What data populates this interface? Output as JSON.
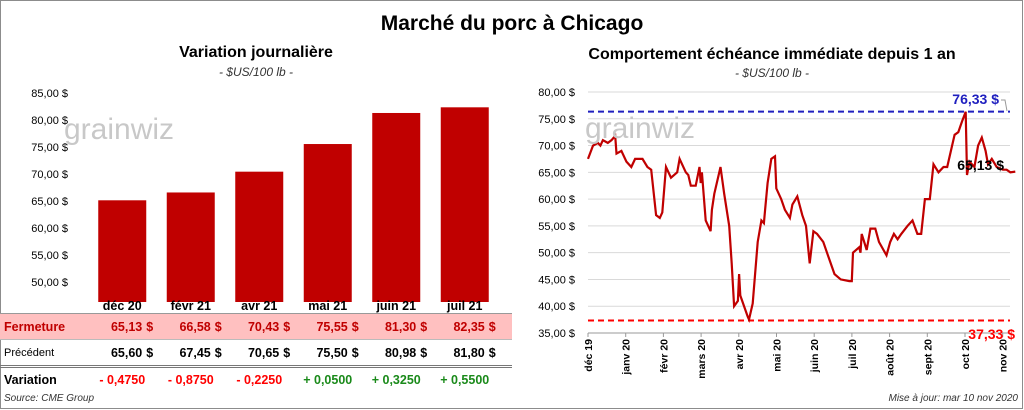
{
  "title": "Marché du porc à Chicago",
  "watermark": "grainwiz",
  "left": {
    "subtitle": "Variation journalière",
    "unit": "- $US/100 lb -",
    "rows": {
      "close_label": "Fermeture",
      "prev_label": "Précédent",
      "var_label": "Variation"
    },
    "contracts": [
      {
        "month": "déc 20",
        "close": "65,13",
        "prev": "65,60",
        "var": "- 0,4750"
      },
      {
        "month": "févr 21",
        "close": "66,58",
        "prev": "67,45",
        "var": "- 0,8750"
      },
      {
        "month": "avr 21",
        "close": "70,43",
        "prev": "70,65",
        "var": "- 0,2250"
      },
      {
        "month": "mai 21",
        "close": "75,55",
        "prev": "75,50",
        "var": "+ 0,0500"
      },
      {
        "month": "juin 21",
        "close": "81,30",
        "prev": "80,98",
        "var": "+ 0,3250"
      },
      {
        "month": "juil 21",
        "close": "82,35",
        "prev": "81,80",
        "var": "+ 0,5500"
      }
    ],
    "currency": "$"
  },
  "footer": {
    "source": "Source: CME Group",
    "updated": "Mise à jour: mar 10 nov 2020"
  },
  "colors": {
    "bar": "#c00000",
    "line": "#c00000",
    "max": "#1f1fbf",
    "min": "#ff0000",
    "neg": "#ff0000",
    "pos": "#1a8a1a",
    "close_row_bg": "#ffc0c0"
  },
  "chart_data": [
    {
      "type": "bar",
      "title": "Variation journalière",
      "subtitle": "- $US/100 lb -",
      "categories": [
        "déc 20",
        "févr 21",
        "avr 21",
        "mai 21",
        "juin 21",
        "juil 21"
      ],
      "values": [
        65.13,
        66.58,
        70.43,
        75.55,
        81.3,
        82.35
      ],
      "ylim": [
        50,
        85
      ],
      "yticks": [
        "50,00 $",
        "55,00 $",
        "60,00 $",
        "65,00 $",
        "70,00 $",
        "75,00 $",
        "80,00 $",
        "85,00 $"
      ],
      "grid": false
    },
    {
      "type": "line",
      "title": "Comportement  échéance immédiate depuis 1 an",
      "subtitle": "- $US/100 lb -",
      "ylim": [
        35,
        80
      ],
      "yticks": [
        "35,00 $",
        "40,00 $",
        "45,00 $",
        "50,00 $",
        "55,00 $",
        "60,00 $",
        "65,00 $",
        "70,00 $",
        "75,00 $",
        "80,00 $"
      ],
      "xticks": [
        "déc 19",
        "janv 20",
        "févr 20",
        "mars 20",
        "avr 20",
        "mai 20",
        "juin 20",
        "juil 20",
        "août 20",
        "sept 20",
        "oct 20",
        "nov 20"
      ],
      "grid": true,
      "max": {
        "value": 76.33,
        "label": "76,33 $"
      },
      "min": {
        "value": 37.33,
        "label": "37,33 $"
      },
      "last": {
        "value": 65.13,
        "label": "65,13 $"
      },
      "points": [
        [
          "2019-12-01",
          67.5
        ],
        [
          "2019-12-05",
          70.0
        ],
        [
          "2019-12-09",
          70.5
        ],
        [
          "2019-12-11",
          70.0
        ],
        [
          "2019-12-13",
          71.0
        ],
        [
          "2019-12-17",
          70.5
        ],
        [
          "2019-12-20",
          71.0
        ],
        [
          "2019-12-23",
          71.8
        ],
        [
          "2019-12-24",
          68.5
        ],
        [
          "2019-12-28",
          69.0
        ],
        [
          "2020-01-01",
          67.0
        ],
        [
          "2020-01-05",
          66.0
        ],
        [
          "2020-01-08",
          67.5
        ],
        [
          "2020-01-14",
          67.5
        ],
        [
          "2020-01-18",
          66.0
        ],
        [
          "2020-01-21",
          65.5
        ],
        [
          "2020-01-25",
          57.0
        ],
        [
          "2020-01-28",
          56.5
        ],
        [
          "2020-01-30",
          57.5
        ],
        [
          "2020-02-02",
          66.0
        ],
        [
          "2020-02-06",
          64.0
        ],
        [
          "2020-02-11",
          65.0
        ],
        [
          "2020-02-13",
          67.5
        ],
        [
          "2020-02-15",
          66.5
        ],
        [
          "2020-02-18",
          65.0
        ],
        [
          "2020-02-20",
          64.5
        ],
        [
          "2020-02-22",
          62.5
        ],
        [
          "2020-02-26",
          62.5
        ],
        [
          "2020-02-29",
          66.0
        ],
        [
          "2020-03-01",
          63.0
        ],
        [
          "2020-03-02",
          65.0
        ],
        [
          "2020-03-05",
          56.0
        ],
        [
          "2020-03-09",
          54.0
        ],
        [
          "2020-03-10",
          58.0
        ],
        [
          "2020-03-12",
          61.0
        ],
        [
          "2020-03-17",
          66.0
        ],
        [
          "2020-03-20",
          61.0
        ],
        [
          "2020-03-24",
          55.0
        ],
        [
          "2020-03-26",
          48.0
        ],
        [
          "2020-03-28",
          40.0
        ],
        [
          "2020-03-31",
          41.0
        ],
        [
          "2020-04-01",
          46.0
        ],
        [
          "2020-04-02",
          42.0
        ],
        [
          "2020-04-08",
          38.0
        ],
        [
          "2020-04-09",
          37.5
        ],
        [
          "2020-04-12",
          40.5
        ],
        [
          "2020-04-16",
          52.0
        ],
        [
          "2020-04-19",
          56.0
        ],
        [
          "2020-04-21",
          55.5
        ],
        [
          "2020-04-22",
          58.0
        ],
        [
          "2020-04-24",
          63.0
        ],
        [
          "2020-04-27",
          67.5
        ],
        [
          "2020-04-30",
          68.0
        ],
        [
          "2020-05-01",
          62.0
        ],
        [
          "2020-05-05",
          60.0
        ],
        [
          "2020-05-08",
          58.0
        ],
        [
          "2020-05-12",
          56.5
        ],
        [
          "2020-05-14",
          59.0
        ],
        [
          "2020-05-18",
          60.5
        ],
        [
          "2020-05-22",
          57.0
        ],
        [
          "2020-05-25",
          55.0
        ],
        [
          "2020-05-28",
          48.0
        ],
        [
          "2020-05-31",
          54.0
        ],
        [
          "2020-06-03",
          53.5
        ],
        [
          "2020-06-08",
          52.0
        ],
        [
          "2020-06-11",
          50.0
        ],
        [
          "2020-06-17",
          46.0
        ],
        [
          "2020-06-22",
          45.0
        ],
        [
          "2020-06-29",
          44.7
        ],
        [
          "2020-07-01",
          44.7
        ],
        [
          "2020-07-02",
          50.0
        ],
        [
          "2020-07-07",
          51.0
        ],
        [
          "2020-07-08",
          50.0
        ],
        [
          "2020-07-09",
          53.5
        ],
        [
          "2020-07-13",
          50.5
        ],
        [
          "2020-07-16",
          54.5
        ],
        [
          "2020-07-20",
          54.5
        ],
        [
          "2020-07-23",
          52.0
        ],
        [
          "2020-07-29",
          49.5
        ],
        [
          "2020-08-01",
          52.0
        ],
        [
          "2020-08-04",
          53.5
        ],
        [
          "2020-08-07",
          52.5
        ],
        [
          "2020-08-10",
          53.5
        ],
        [
          "2020-08-15",
          55.0
        ],
        [
          "2020-08-19",
          56.0
        ],
        [
          "2020-08-23",
          53.5
        ],
        [
          "2020-08-26",
          53.5
        ],
        [
          "2020-08-29",
          60.0
        ],
        [
          "2020-09-02",
          60.0
        ],
        [
          "2020-09-05",
          66.5
        ],
        [
          "2020-09-09",
          65.0
        ],
        [
          "2020-09-13",
          66.0
        ],
        [
          "2020-09-16",
          66.0
        ],
        [
          "2020-09-20",
          70.0
        ],
        [
          "2020-09-22",
          72.0
        ],
        [
          "2020-09-25",
          72.5
        ],
        [
          "2020-09-28",
          74.5
        ],
        [
          "2020-10-01",
          76.3
        ],
        [
          "2020-10-02",
          64.5
        ],
        [
          "2020-10-04",
          67.0
        ],
        [
          "2020-10-08",
          66.0
        ],
        [
          "2020-10-11",
          70.0
        ],
        [
          "2020-10-14",
          71.5
        ],
        [
          "2020-10-17",
          69.0
        ],
        [
          "2020-10-19",
          66.5
        ],
        [
          "2020-10-22",
          67.5
        ],
        [
          "2020-10-26",
          66.0
        ],
        [
          "2020-10-31",
          65.5
        ],
        [
          "2020-11-03",
          65.5
        ],
        [
          "2020-11-06",
          65.0
        ],
        [
          "2020-11-10",
          65.13
        ]
      ]
    }
  ]
}
